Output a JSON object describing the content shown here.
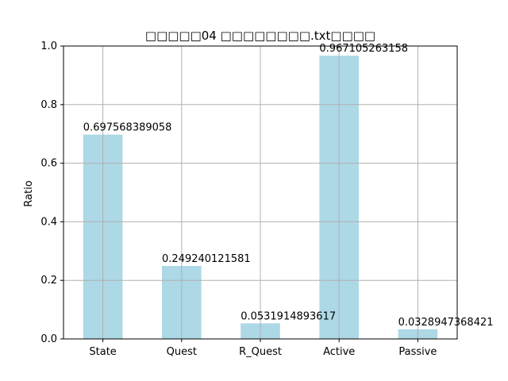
{
  "chart_data": {
    "type": "bar",
    "title": "□□□□□04 □□□□□□□□.txt□□□□",
    "xlabel": "",
    "ylabel": "Ratio",
    "categories": [
      "State",
      "Quest",
      "R_Quest",
      "Active",
      "Passive"
    ],
    "values": [
      0.697568389058,
      0.249240121581,
      0.0531914893617,
      0.967105263158,
      0.0328947368421
    ],
    "data_labels": [
      "0.697568389058",
      "0.249240121581",
      "0.0531914893617",
      "0.967105263158",
      "0.0328947368421"
    ],
    "ylim": [
      0,
      1.0
    ],
    "yticks": [
      "0.0",
      "0.2",
      "0.4",
      "0.6",
      "0.8",
      "1.0"
    ],
    "grid": true,
    "bar_color": "#add8e6",
    "grid_color": "#b0b0b0"
  }
}
